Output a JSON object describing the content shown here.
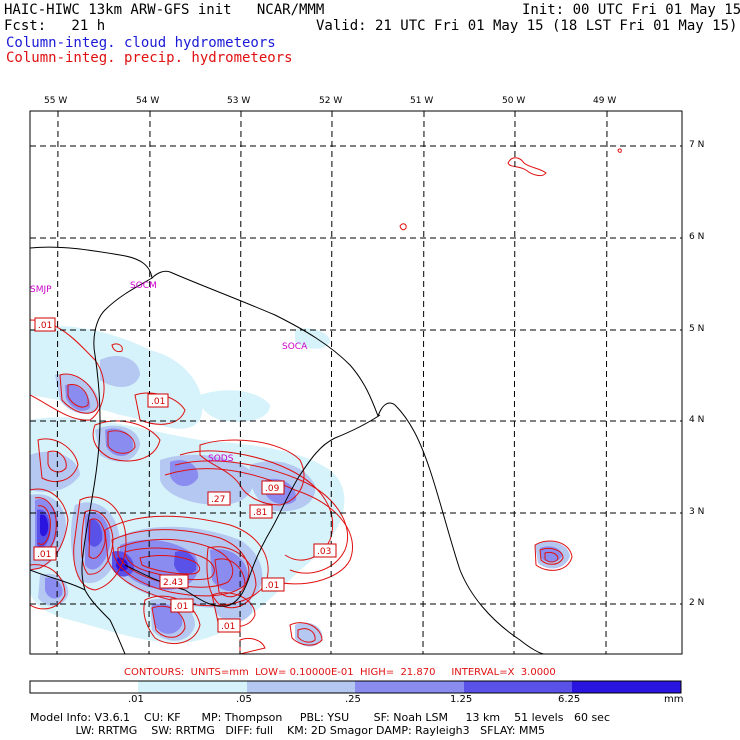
{
  "header": {
    "model_line": "HAIC-HIWC 13km ARW-GFS init   NCAR/MMM",
    "fcst_line": "Fcst:   21 h",
    "init_line": "Init: 00 UTC Fri 01 May 15",
    "valid_line": "Valid: 21 UTC Fri 01 May 15 (18 LST Fri 01 May 15)",
    "legend_cloud": "Column-integ. cloud hydrometeors",
    "legend_precip": "Column-integ. precip. hydrometeors"
  },
  "map": {
    "lon_labels": [
      "55 W",
      "54 W",
      "53 W",
      "52 W",
      "51 W",
      "50 W",
      "49 W"
    ],
    "lat_labels": [
      "7 N",
      "6 N",
      "5 N",
      "4 N",
      "3 N",
      "2 N"
    ],
    "stations": [
      "SMJP",
      "SOCM",
      "SOCA",
      "SODS"
    ],
    "contour_labels": [
      ".01",
      ".01",
      ".27",
      ".09",
      ".81",
      ".03",
      "2.43",
      ".01",
      ".01",
      ".01",
      ".01"
    ]
  },
  "contour_info": {
    "text": "CONTOURS:  UNITS=mm  LOW= 0.10000E-01  HIGH=  21.870     INTERVAL=X  3.0000"
  },
  "colorbar": {
    "labels": [
      ".01",
      ".05",
      ".25",
      "1.25",
      "6.25"
    ],
    "unit": "mm",
    "colors": [
      "#ffffff",
      "#d6f2fa",
      "#b4c8f2",
      "#8a8cf0",
      "#5a52e8",
      "#2a14e0"
    ]
  },
  "footer": {
    "line1": "Model Info: V3.6.1    CU: KF      MP: Thompson     PBL: YSU       SF: Noah LSM     13 km    51 levels   60 sec",
    "line2": "             LW: RRTMG    SW: RRTMG   DIFF: full    KM: 2D Smagor DAMP: Rayleigh3   SFLAY: MM5"
  },
  "colors": {
    "cloud_blue": "#1a1ad6",
    "precip_red": "#e01010",
    "station_magenta": "#cc00cc"
  }
}
